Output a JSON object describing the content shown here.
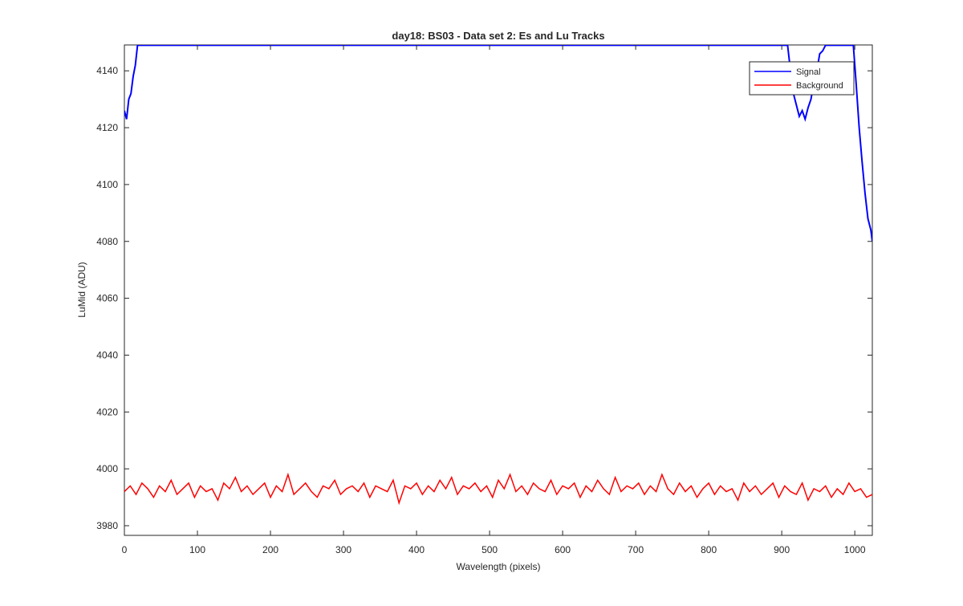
{
  "chart_data": {
    "type": "line",
    "title": "day18: BS03 - Data set 2: Es and Lu Tracks",
    "x_label": "Wavelength (pixels)",
    "y_label": "LuMid (ADU)",
    "xlim": [
      0,
      1024
    ],
    "ylim": [
      3976.6,
      4149.1
    ],
    "xticks": [
      0,
      100,
      200,
      300,
      400,
      500,
      600,
      700,
      800,
      900,
      1000
    ],
    "yticks": [
      3980,
      4000,
      4020,
      4040,
      4060,
      4080,
      4100,
      4120,
      4140
    ],
    "legend": "northeast",
    "x": [
      0,
      8,
      16,
      24,
      32,
      40,
      48,
      56,
      64,
      72,
      80,
      88,
      96,
      104,
      112,
      120,
      128,
      136,
      144,
      152,
      160,
      168,
      176,
      184,
      192,
      200,
      208,
      216,
      224,
      232,
      240,
      248,
      256,
      264,
      272,
      280,
      288,
      296,
      304,
      312,
      320,
      328,
      336,
      344,
      352,
      360,
      368,
      376,
      384,
      392,
      400,
      408,
      416,
      424,
      432,
      440,
      448,
      456,
      464,
      472,
      480,
      488,
      496,
      504,
      512,
      520,
      528,
      536,
      544,
      552,
      560,
      568,
      576,
      584,
      592,
      600,
      608,
      616,
      624,
      632,
      640,
      648,
      656,
      664,
      672,
      680,
      688,
      696,
      704,
      712,
      720,
      728,
      736,
      744,
      752,
      760,
      768,
      776,
      784,
      792,
      800,
      808,
      816,
      824,
      832,
      840,
      848,
      856,
      864,
      872,
      880,
      888,
      896,
      904,
      912,
      920,
      928,
      936,
      944,
      952,
      960,
      968,
      976,
      984,
      992,
      1000,
      1008,
      1016,
      1024
    ],
    "series": [
      {
        "name": "Signal",
        "color": "#0000ff",
        "x": [
          0,
          3,
          6,
          9,
          12,
          15,
          18,
          908,
          912,
          916,
          920,
          924,
          928,
          932,
          936,
          940,
          944,
          948,
          952,
          956,
          960,
          998,
          1002,
          1006,
          1010,
          1014,
          1018,
          1022,
          1024
        ],
        "values": [
          4126,
          4123,
          4130,
          4132,
          4138,
          4142,
          4149,
          4149,
          4140,
          4132,
          4128,
          4124,
          4126,
          4123,
          4127,
          4130,
          4136,
          4140,
          4146,
          4147,
          4149,
          4149,
          4135,
          4120,
          4108,
          4097,
          4088,
          4084,
          4080
        ],
        "breaks_after": null
      },
      {
        "name": "Background",
        "color": "#ff0000",
        "values": [
          3992,
          3994,
          3991,
          3995,
          3993,
          3990,
          3994,
          3992,
          3996,
          3991,
          3993,
          3995,
          3990,
          3994,
          3992,
          3993,
          3989,
          3995,
          3993,
          3997,
          3992,
          3994,
          3991,
          3993,
          3995,
          3990,
          3994,
          3992,
          3998,
          3991,
          3993,
          3995,
          3992,
          3990,
          3994,
          3993,
          3996,
          3991,
          3993,
          3994,
          3992,
          3995,
          3990,
          3994,
          3993,
          3992,
          3996,
          3988,
          3994,
          3993,
          3995,
          3991,
          3994,
          3992,
          3996,
          3993,
          3997,
          3991,
          3994,
          3993,
          3995,
          3992,
          3994,
          3990,
          3996,
          3993,
          3998,
          3992,
          3994,
          3991,
          3995,
          3993,
          3992,
          3996,
          3991,
          3994,
          3993,
          3995,
          3990,
          3994,
          3992,
          3996,
          3993,
          3991,
          3997,
          3992,
          3994,
          3993,
          3995,
          3991,
          3994,
          3992,
          3998,
          3993,
          3991,
          3995,
          3992,
          3994,
          3990,
          3993,
          3995,
          3991,
          3994,
          3992,
          3993,
          3989,
          3995,
          3992,
          3994,
          3991,
          3993,
          3995,
          3990,
          3994,
          3992,
          3991,
          3995,
          3989,
          3993,
          3992,
          3994,
          3990,
          3993,
          3991,
          3995,
          3992,
          3993,
          3990,
          3991
        ]
      }
    ]
  }
}
